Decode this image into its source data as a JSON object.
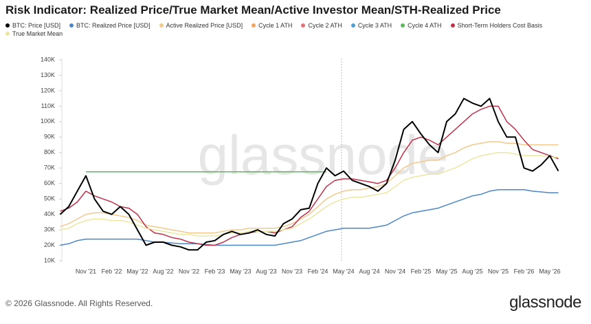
{
  "chart_data": {
    "type": "line",
    "title": "Risk Indicator: Realized Price/True Market Mean/Active Investor Mean/STH-Realized Price",
    "watermark": "glassnode",
    "categories": [
      null,
      null,
      null,
      "Nov '21",
      null,
      null,
      "Feb '22",
      null,
      null,
      "May '22",
      null,
      null,
      "Aug '22",
      null,
      null,
      "Nov '22",
      null,
      null,
      "Feb '23",
      null,
      null,
      "May '23",
      null,
      null,
      "Aug '23",
      null,
      null,
      "Nov '23",
      null,
      null,
      "Feb '24",
      null,
      null,
      "May '24",
      null,
      null,
      "Aug '24",
      null,
      null,
      "Nov '24",
      null,
      null,
      "Feb '25",
      null,
      null,
      "May '25",
      null,
      null,
      "Aug '25",
      null,
      null,
      "Nov '25",
      null,
      null,
      "Feb '26",
      null,
      null,
      "May '26",
      null
    ],
    "ylim": [
      10000,
      140000
    ],
    "yticks": [
      {
        "value": 10000,
        "label": "10K"
      },
      {
        "value": 20000,
        "label": "20K"
      },
      {
        "value": 30000,
        "label": "30K"
      },
      {
        "value": 40000,
        "label": "40K"
      },
      {
        "value": 50000,
        "label": "50K"
      },
      {
        "value": 60000,
        "label": "60K"
      },
      {
        "value": 70000,
        "label": "70K"
      },
      {
        "value": 80000,
        "label": "80K"
      },
      {
        "value": 90000,
        "label": "90K"
      },
      {
        "value": 100000,
        "label": "100K"
      },
      {
        "value": 110000,
        "label": "110K"
      },
      {
        "value": 120000,
        "label": "120K"
      },
      {
        "value": 130000,
        "label": "130K"
      },
      {
        "value": 140000,
        "label": "140K"
      }
    ],
    "series": [
      {
        "name": "BTC: Price [USD]",
        "color": "#000000",
        "values": [
          40000,
          45000,
          55000,
          65000,
          50000,
          42000,
          40000,
          45000,
          40000,
          30000,
          20000,
          22000,
          22000,
          20000,
          19000,
          17000,
          17000,
          22000,
          23000,
          27000,
          29000,
          27000,
          28000,
          30000,
          27000,
          26000,
          34000,
          37000,
          43000,
          44000,
          60000,
          70000,
          65000,
          68000,
          62000,
          60000,
          58000,
          55000,
          60000,
          75000,
          95000,
          100000,
          92000,
          85000,
          80000,
          100000,
          105000,
          115000,
          112000,
          110000,
          115000,
          100000,
          90000,
          90000,
          70000,
          68000,
          72000,
          78000,
          68000
        ]
      },
      {
        "name": "BTC: Realized Price [USD]",
        "color": "#4a86c8",
        "values": [
          20000,
          21000,
          23000,
          24000,
          24000,
          24000,
          24000,
          24000,
          24000,
          24000,
          23000,
          22000,
          22000,
          21500,
          21000,
          21000,
          21000,
          20500,
          20000,
          20000,
          20000,
          20000,
          20000,
          20000,
          20000,
          20000,
          21000,
          22000,
          23000,
          25000,
          27000,
          29000,
          30000,
          31000,
          31000,
          31000,
          31000,
          32000,
          33000,
          36000,
          39000,
          41000,
          42000,
          43000,
          44000,
          46000,
          48000,
          50000,
          52000,
          53000,
          55000,
          56000,
          56000,
          56000,
          56000,
          55000,
          54500,
          54000,
          54000
        ]
      },
      {
        "name": "Active Realized Price [USD]",
        "color": "#f2c98b",
        "values": [
          32000,
          34000,
          37000,
          40000,
          41000,
          41000,
          40000,
          39000,
          38000,
          36000,
          33000,
          32000,
          31000,
          30000,
          29000,
          28000,
          28000,
          28000,
          28000,
          29000,
          30000,
          30000,
          31000,
          31000,
          31000,
          31000,
          32000,
          34000,
          37000,
          40000,
          45000,
          50000,
          53000,
          55000,
          56000,
          56000,
          57000,
          58000,
          60000,
          65000,
          70000,
          73000,
          74000,
          75000,
          75000,
          78000,
          80000,
          83000,
          85000,
          86000,
          87000,
          87000,
          86000,
          86000,
          85000,
          85000,
          85000,
          85000,
          85000
        ]
      },
      {
        "name": "Cycle 1 ATH",
        "color": "#f4a460",
        "values": [
          null,
          null,
          null,
          null,
          null,
          null,
          null,
          null,
          null,
          null,
          null,
          null,
          null,
          null,
          null,
          null,
          null,
          null,
          null,
          null,
          null,
          null,
          null,
          null,
          null,
          null,
          null,
          null,
          null,
          null,
          null,
          null,
          null,
          null,
          null,
          null,
          null,
          null,
          null,
          null,
          null,
          null,
          null,
          null,
          null,
          null,
          null,
          null,
          null,
          null,
          null,
          null,
          null,
          null,
          null,
          null,
          null,
          null,
          null
        ]
      },
      {
        "name": "Cycle 2 ATH",
        "color": "#e8707a",
        "values": [
          null,
          null,
          null,
          null,
          null,
          null,
          null,
          null,
          null,
          null,
          null,
          null,
          null,
          null,
          null,
          null,
          null,
          null,
          null,
          null,
          null,
          null,
          null,
          null,
          null,
          null,
          null,
          null,
          null,
          null,
          null,
          null,
          null,
          null,
          null,
          null,
          null,
          null,
          null,
          null,
          null,
          null,
          null,
          null,
          null,
          null,
          null,
          null,
          null,
          null,
          null,
          null,
          null,
          null,
          null,
          null,
          null,
          null,
          null
        ]
      },
      {
        "name": "Cycle 3 ATH",
        "color": "#4f9fd6",
        "values": [
          null,
          null,
          null,
          null,
          null,
          null,
          null,
          null,
          null,
          null,
          null,
          null,
          null,
          null,
          null,
          null,
          null,
          null,
          null,
          null,
          null,
          null,
          null,
          null,
          null,
          null,
          null,
          null,
          null,
          null,
          null,
          null,
          null,
          null,
          null,
          null,
          null,
          null,
          null,
          null,
          null,
          null,
          null,
          null,
          null,
          null,
          null,
          null,
          null,
          null,
          null,
          null,
          null,
          null,
          null,
          null,
          null,
          null,
          null
        ]
      },
      {
        "name": "Cycle 4 ATH",
        "color": "#5cb85c",
        "values": [
          null,
          null,
          null,
          67500,
          67500,
          67500,
          67500,
          67500,
          67500,
          67500,
          67500,
          67500,
          67500,
          67500,
          67500,
          67500,
          67500,
          67500,
          67500,
          67500,
          67500,
          67500,
          67500,
          67500,
          67500,
          67500,
          67500,
          67500,
          67500,
          67500,
          67500,
          67500,
          null,
          null,
          null,
          null,
          null,
          null,
          null,
          null,
          null,
          null,
          null,
          null,
          null,
          null,
          null,
          null,
          null,
          null,
          null,
          null,
          null,
          null,
          null,
          null,
          null,
          null,
          null
        ]
      },
      {
        "name": "Short-Term Holders Cost Basis",
        "color": "#c0304a",
        "values": [
          42000,
          44000,
          48000,
          55000,
          52000,
          50000,
          48000,
          45000,
          44000,
          40000,
          32000,
          28000,
          27000,
          25000,
          24000,
          22000,
          21000,
          20000,
          20000,
          22000,
          25000,
          27000,
          28000,
          29000,
          29000,
          28000,
          30000,
          32000,
          38000,
          42000,
          50000,
          58000,
          62000,
          63000,
          63000,
          62000,
          61000,
          60000,
          62000,
          70000,
          80000,
          88000,
          90000,
          88000,
          85000,
          90000,
          95000,
          100000,
          105000,
          108000,
          110000,
          110000,
          100000,
          95000,
          88000,
          82000,
          80000,
          78000,
          76000
        ]
      },
      {
        "name": "True Market Mean",
        "color": "#ece6a0",
        "values": [
          30000,
          31000,
          34000,
          36000,
          37000,
          37000,
          36000,
          36000,
          35000,
          33000,
          31000,
          30000,
          29000,
          28000,
          27000,
          27000,
          26000,
          26000,
          26000,
          27000,
          28000,
          28000,
          29000,
          29000,
          29000,
          29000,
          30000,
          31000,
          34000,
          37000,
          41000,
          45000,
          48000,
          50000,
          51000,
          51000,
          52000,
          53000,
          54000,
          58000,
          62000,
          64000,
          65000,
          66000,
          66000,
          68000,
          70000,
          73000,
          76000,
          78000,
          79000,
          80000,
          80000,
          79000,
          78000,
          78000,
          78000,
          77000,
          77000
        ]
      }
    ]
  },
  "footer": {
    "copyright": "© 2026 Glassnode. All Rights Reserved.",
    "logo": "glassnode"
  }
}
